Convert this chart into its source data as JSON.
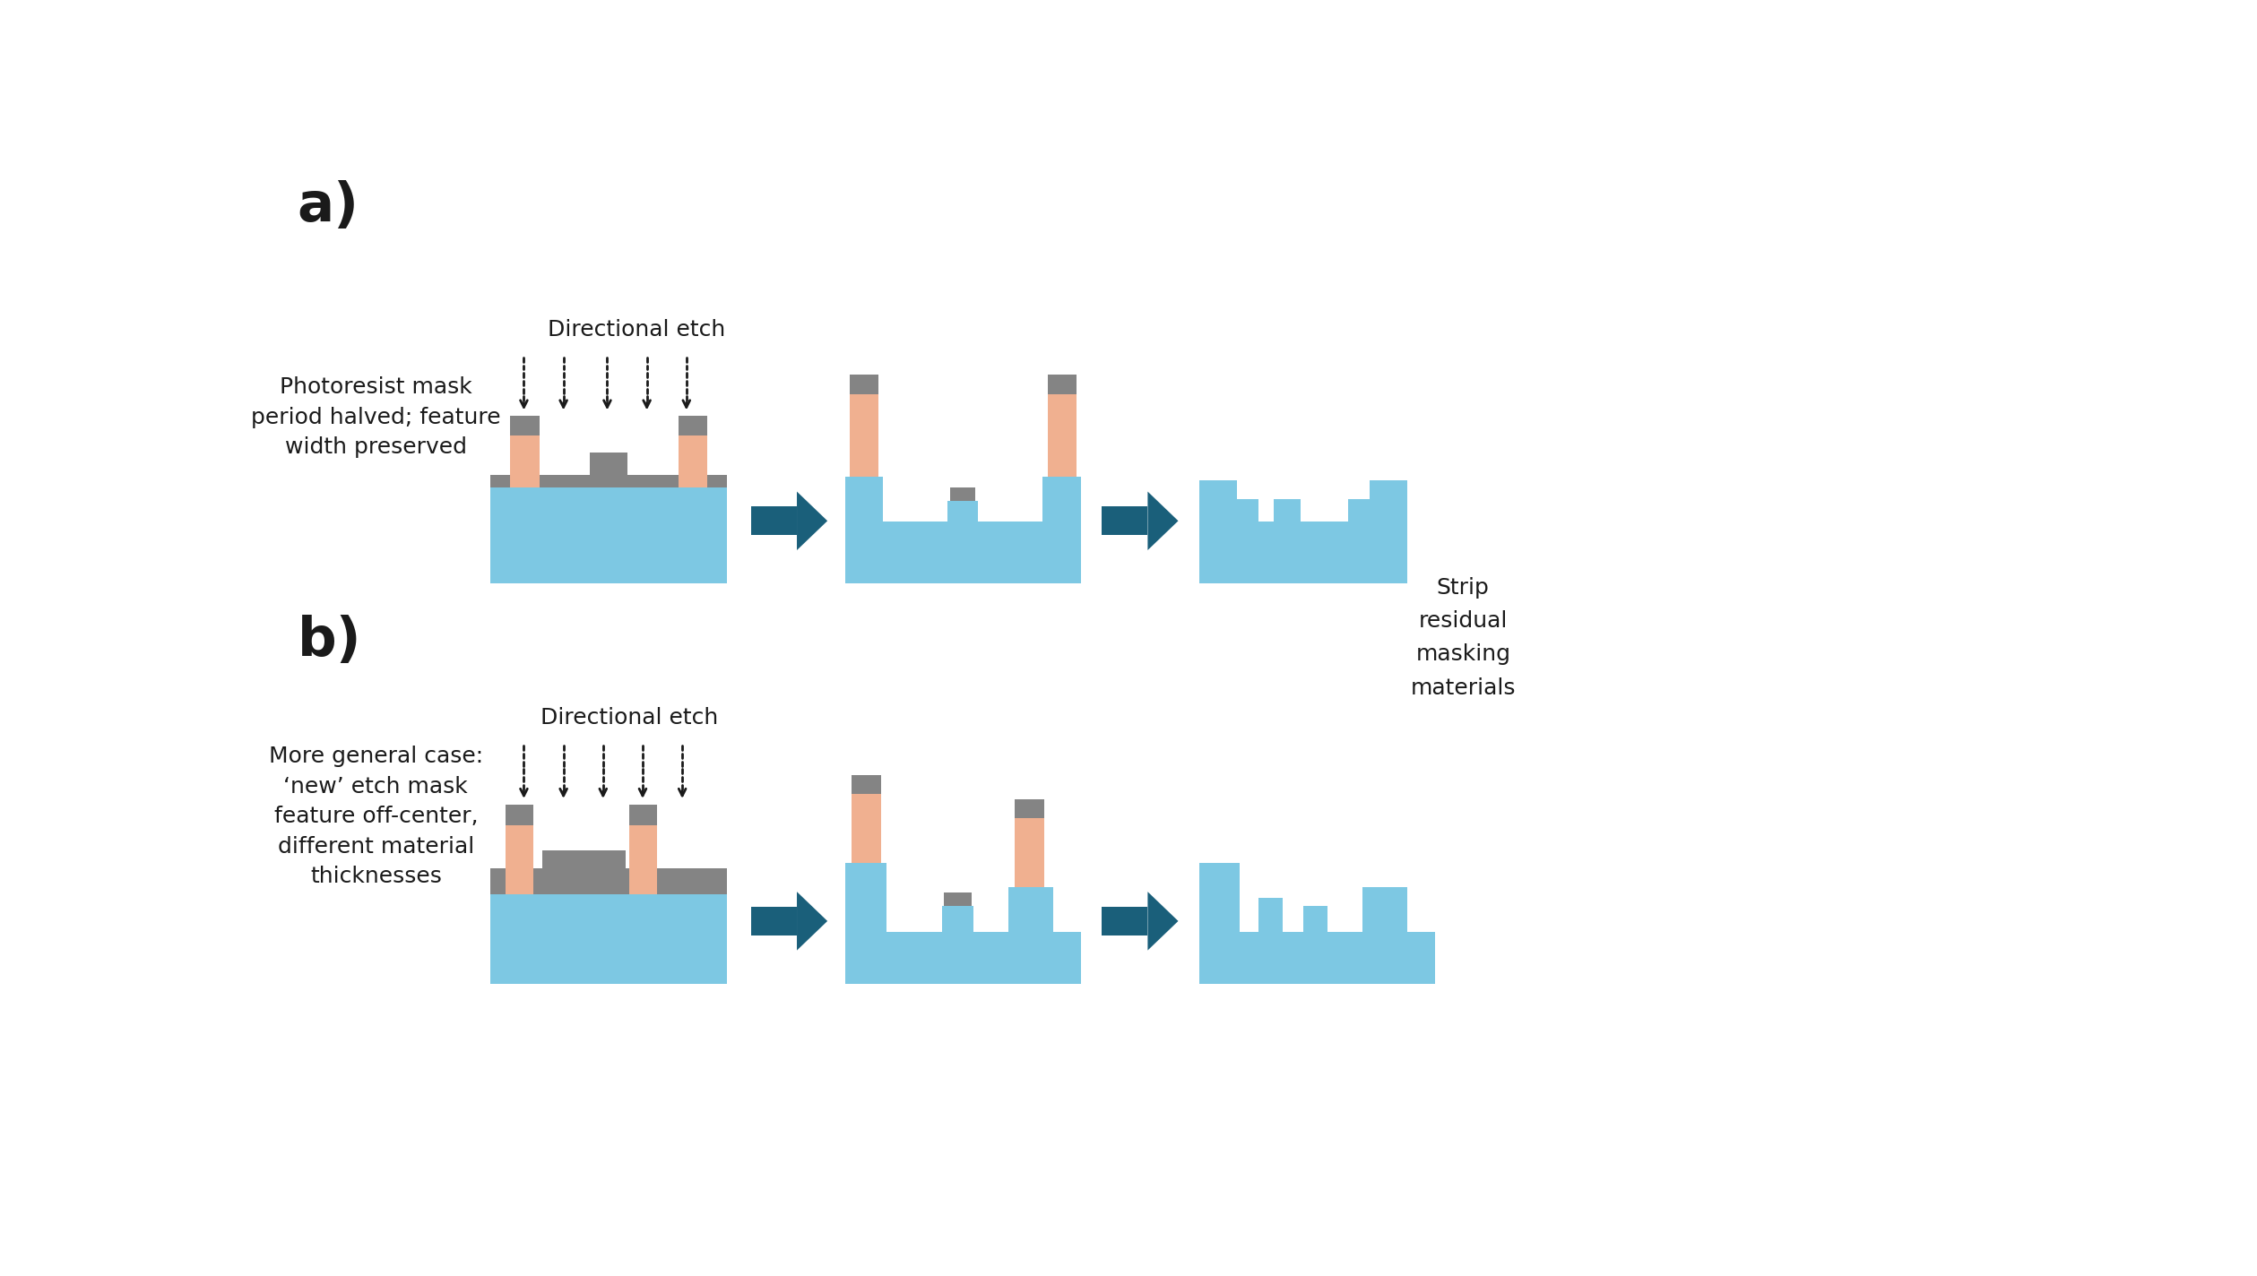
{
  "bg_color": "#ffffff",
  "light_blue": "#7dc8e3",
  "salmon": "#f0b090",
  "dark_gray": "#848484",
  "dark_teal": "#1a5f7a",
  "text_color": "#1a1a1a",
  "label_a": "a)",
  "label_b": "b)",
  "dir_etch": "Directional etch",
  "desc_a": "Photoresist mask\nperiod halved; feature\nwidth preserved",
  "desc_b": "More general case:\n‘new’ etch mask\nfeature off-center,\ndifferent material\nthicknesses",
  "strip_label": "Strip\nresidual\nmasking\nmaterials"
}
